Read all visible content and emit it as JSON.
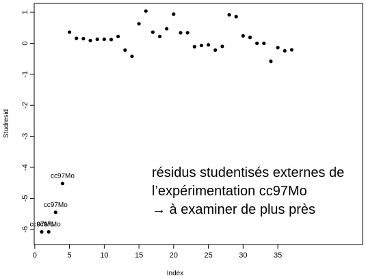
{
  "chart_data": {
    "type": "scatter",
    "xlabel": "Index",
    "ylabel": "Studresid",
    "xlim": [
      0,
      37.5
    ],
    "ylim": [
      -6.15,
      1.1
    ],
    "x_ticks": [
      0,
      5,
      10,
      15,
      20,
      25,
      30,
      35
    ],
    "y_ticks": [
      1,
      0,
      -1,
      -2,
      -3,
      -4,
      -5,
      -6
    ],
    "series": [
      {
        "x": [
          1,
          2,
          3,
          4,
          5,
          6,
          7,
          8,
          9,
          10,
          11,
          12,
          13,
          14,
          15,
          16,
          17,
          18,
          19,
          20,
          21,
          22,
          23,
          24,
          25,
          26,
          27,
          28,
          29,
          30,
          31,
          32,
          33,
          34,
          35,
          36,
          37
        ],
        "y": [
          -6.08,
          -6.08,
          -5.45,
          -4.52,
          0.36,
          0.16,
          0.15,
          0.09,
          0.13,
          0.13,
          0.12,
          0.22,
          -0.22,
          -0.42,
          0.63,
          1.04,
          0.36,
          0.22,
          0.47,
          0.94,
          0.34,
          0.34,
          -0.11,
          -0.07,
          -0.05,
          -0.22,
          -0.1,
          0.92,
          0.86,
          0.24,
          0.19,
          0.0,
          0.0,
          -0.58,
          -0.14,
          -0.24,
          -0.21
        ]
      }
    ],
    "point_labels": [
      {
        "index": 0,
        "text": "cc97Mo"
      },
      {
        "index": 1,
        "text": "cc97Mo"
      },
      {
        "index": 2,
        "text": "cc97Mo"
      },
      {
        "index": 3,
        "text": "cc97Mo"
      }
    ],
    "annotation": [
      "résidus studentisés externes de",
      "l’expérimentation cc97Mo",
      "→ à examiner de plus près"
    ]
  }
}
